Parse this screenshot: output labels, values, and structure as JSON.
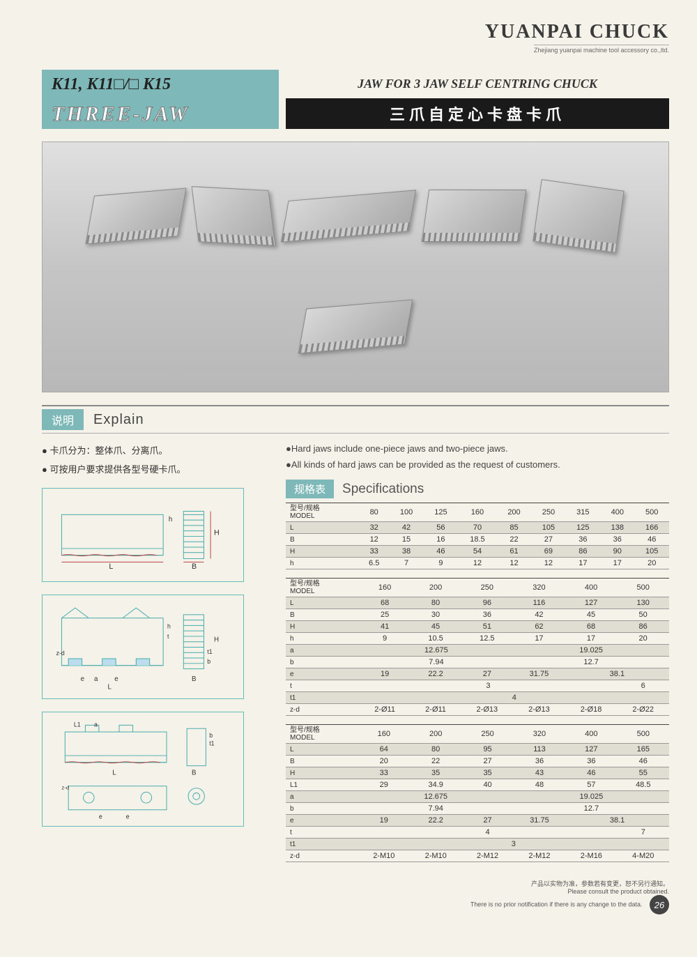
{
  "brand": {
    "title": "YUANPAI CHUCK",
    "subtitle": "Zhejiang yuanpai machine tool accessory co.,ltd."
  },
  "header": {
    "models": "K11, K11□/□ K15",
    "three_jaw": "THREE-JAW",
    "title_en": "JAW FOR 3 JAW SELF CENTRING CHUCK",
    "title_cn": "三爪自定心卡盘卡爪"
  },
  "explain": {
    "label_cn": "说明",
    "label_en": "Explain",
    "bullets_cn": [
      "● 卡爪分为：整体爪、分离爪。",
      "● 可按用户要求提供各型号硬卡爪。"
    ],
    "bullets_en": [
      "●Hard jaws include one-piece jaws and two-piece jaws.",
      "●All kinds of hard jaws can be provided as the request of customers."
    ]
  },
  "specs": {
    "label_cn": "规格表",
    "label_en": "Specifications",
    "model_header": "型号/规格\nMODEL"
  },
  "table1": {
    "cols": [
      "80",
      "100",
      "125",
      "160",
      "200",
      "250",
      "315",
      "400",
      "500"
    ],
    "rows": [
      {
        "k": "L",
        "v": [
          "32",
          "42",
          "56",
          "70",
          "85",
          "105",
          "125",
          "138",
          "166"
        ]
      },
      {
        "k": "B",
        "v": [
          "12",
          "15",
          "16",
          "18.5",
          "22",
          "27",
          "36",
          "36",
          "46"
        ]
      },
      {
        "k": "H",
        "v": [
          "33",
          "38",
          "46",
          "54",
          "61",
          "69",
          "86",
          "90",
          "105"
        ]
      },
      {
        "k": "h",
        "v": [
          "6.5",
          "7",
          "9",
          "12",
          "12",
          "12",
          "17",
          "17",
          "20"
        ]
      }
    ]
  },
  "table2": {
    "cols": [
      "160",
      "200",
      "250",
      "320",
      "400",
      "500"
    ],
    "rows": [
      {
        "k": "L",
        "v": [
          "68",
          "80",
          "96",
          "116",
          "127",
          "130"
        ],
        "spans": [
          1,
          1,
          1,
          1,
          1,
          1
        ]
      },
      {
        "k": "B",
        "v": [
          "25",
          "30",
          "36",
          "42",
          "45",
          "50"
        ],
        "spans": [
          1,
          1,
          1,
          1,
          1,
          1
        ]
      },
      {
        "k": "H",
        "v": [
          "41",
          "45",
          "51",
          "62",
          "68",
          "86"
        ],
        "spans": [
          1,
          1,
          1,
          1,
          1,
          1
        ]
      },
      {
        "k": "h",
        "v": [
          "9",
          "10.5",
          "12.5",
          "17",
          "17",
          "20"
        ],
        "spans": [
          1,
          1,
          1,
          1,
          1,
          1
        ]
      },
      {
        "k": "a",
        "v": [
          "12.675",
          "19.025"
        ],
        "spans": [
          3,
          3
        ]
      },
      {
        "k": "b",
        "v": [
          "7.94",
          "12.7"
        ],
        "spans": [
          3,
          3
        ]
      },
      {
        "k": "e",
        "v": [
          "19",
          "22.2",
          "27",
          "31.75",
          "38.1"
        ],
        "spans": [
          1,
          1,
          1,
          1,
          2
        ]
      },
      {
        "k": "t",
        "v": [
          "3",
          "6"
        ],
        "spans": [
          5,
          1
        ]
      },
      {
        "k": "t1",
        "v": [
          "4"
        ],
        "spans": [
          6
        ]
      },
      {
        "k": "z-d",
        "v": [
          "2-Ø11",
          "2-Ø11",
          "2-Ø13",
          "2-Ø13",
          "2-Ø18",
          "2-Ø22"
        ],
        "spans": [
          1,
          1,
          1,
          1,
          1,
          1
        ]
      }
    ]
  },
  "table3": {
    "cols": [
      "160",
      "200",
      "250",
      "320",
      "400",
      "500"
    ],
    "rows": [
      {
        "k": "L",
        "v": [
          "64",
          "80",
          "95",
          "113",
          "127",
          "165"
        ],
        "spans": [
          1,
          1,
          1,
          1,
          1,
          1
        ]
      },
      {
        "k": "B",
        "v": [
          "20",
          "22",
          "27",
          "36",
          "36",
          "46"
        ],
        "spans": [
          1,
          1,
          1,
          1,
          1,
          1
        ]
      },
      {
        "k": "H",
        "v": [
          "33",
          "35",
          "35",
          "43",
          "46",
          "55"
        ],
        "spans": [
          1,
          1,
          1,
          1,
          1,
          1
        ]
      },
      {
        "k": "L1",
        "v": [
          "29",
          "34.9",
          "40",
          "48",
          "57",
          "48.5"
        ],
        "spans": [
          1,
          1,
          1,
          1,
          1,
          1
        ]
      },
      {
        "k": "a",
        "v": [
          "12.675",
          "19.025"
        ],
        "spans": [
          3,
          3
        ]
      },
      {
        "k": "b",
        "v": [
          "7.94",
          "12.7"
        ],
        "spans": [
          3,
          3
        ]
      },
      {
        "k": "e",
        "v": [
          "19",
          "22.2",
          "27",
          "31.75",
          "38.1"
        ],
        "spans": [
          1,
          1,
          1,
          1,
          2
        ]
      },
      {
        "k": "t",
        "v": [
          "4",
          "7"
        ],
        "spans": [
          5,
          1
        ]
      },
      {
        "k": "t1",
        "v": [
          "3"
        ],
        "spans": [
          6
        ]
      },
      {
        "k": "z-d",
        "v": [
          "2-M10",
          "2-M10",
          "2-M12",
          "2-M12",
          "2-M16",
          "4-M20"
        ],
        "spans": [
          1,
          1,
          1,
          1,
          1,
          1
        ]
      }
    ]
  },
  "diagram_labels": {
    "L": "L",
    "B": "B",
    "H": "H",
    "h": "h",
    "a": "a",
    "b": "b",
    "e": "e",
    "t": "t",
    "t1": "t1",
    "zd": "z-d",
    "L1": "L1"
  },
  "footer": {
    "line1_cn": "产品以实物为准，参数若有变更，恕不另行通知。",
    "line1_en": "Please consult the product obtained.",
    "line2_en": "There is no prior notification if there is any change to the data.",
    "page": "26"
  },
  "colors": {
    "teal": "#7fb8b8",
    "dark": "#1a1a1a",
    "page_bg": "#f5f2e9"
  }
}
